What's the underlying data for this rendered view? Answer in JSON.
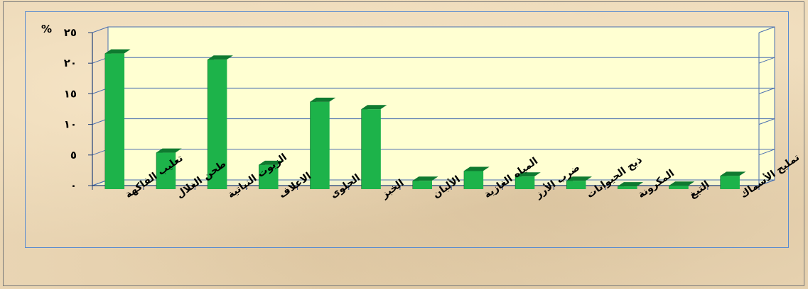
{
  "chart_data": {
    "type": "bar",
    "unit_label": "%",
    "categories": [
      "تعليب الفاكهة",
      "طحن الغلال",
      "الزيوت النباتية",
      "الاعلاف",
      "الحلوى",
      "الخبز",
      "الألبان",
      "المياه الغازية",
      "ضرب الأرز",
      "ذبح الحيوانات",
      "المكرونة",
      "التبغ",
      "تمليح الأسماك"
    ],
    "values": [
      22.5,
      6.3,
      21.5,
      4.3,
      14.6,
      13.4,
      1.7,
      3.3,
      2.4,
      1.7,
      0.8,
      0.9,
      2.5
    ],
    "y_tick_labels": [
      "٠",
      "٥",
      "١٠",
      "١٥",
      "٢٠",
      "٢٥"
    ],
    "y_ticks": [
      0,
      5,
      10,
      15,
      20,
      25
    ],
    "ylim": [
      0,
      25
    ],
    "grid": true,
    "colors": {
      "bar_front": "#1db34a",
      "bar_side": "#0c5a24",
      "bar_top": "#0f7a30",
      "plot_back": "#ffffd2",
      "gridline": "#4a6fb0",
      "frame": "#5b8ccf"
    }
  }
}
